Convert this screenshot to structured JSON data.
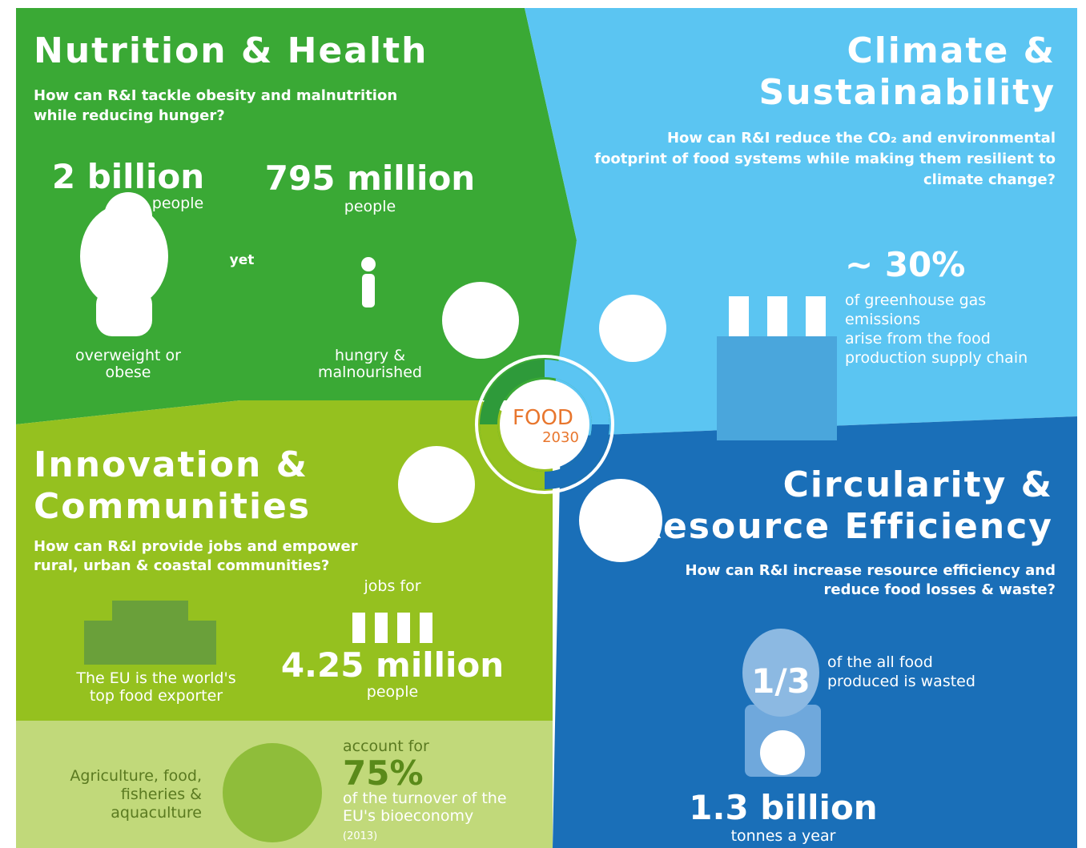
{
  "nutrition": {
    "title": "Nutrition & Health",
    "question": [
      "How can R&I tackle obesity and malnutrition",
      "while reducing hunger?"
    ],
    "stat1": {
      "value": "2 billion",
      "unit": "people",
      "label": [
        "overweight or",
        "obese"
      ]
    },
    "connector": "yet",
    "stat2": {
      "value": "795 million",
      "unit": "people",
      "label": [
        "hungry &",
        "malnourished"
      ]
    }
  },
  "climate": {
    "title": [
      "Climate &",
      "Sustainability"
    ],
    "question": [
      "How can R&I reduce the CO₂ and environmental",
      "footprint of food systems while making them resilient to",
      "climate change?"
    ],
    "stat": {
      "value": "~ 30%",
      "label": [
        "of greenhouse gas",
        "emissions",
        "arise from the food",
        "production supply chain"
      ]
    }
  },
  "center": {
    "line1": "FOOD",
    "line2": "2030"
  },
  "innovation": {
    "title": [
      "Innovation &",
      "Communities"
    ],
    "question": [
      "How can R&I provide jobs and empower",
      "rural, urban & coastal communities?"
    ],
    "exporter": [
      "The EU is the world's",
      "top food exporter"
    ],
    "jobs": {
      "intro": "jobs for",
      "value": "4.25 million",
      "unit": "people"
    },
    "bioeconomy": {
      "sectors": [
        "Agriculture, food,",
        "fisheries &",
        "aquaculture"
      ],
      "intro": "account for",
      "value": "75%",
      "label": [
        "of the turnover of the",
        "EU's bioeconomy"
      ],
      "year": "(2013)"
    }
  },
  "circularity": {
    "title": [
      "Circularity &",
      "Resource Efficiency"
    ],
    "question": [
      "How can R&I increase resource efficiency and",
      "reduce food losses & waste?"
    ],
    "fraction": "1/3",
    "fraction_label": [
      "of the all food",
      "produced is wasted"
    ],
    "stat": {
      "value": "1.3 billion",
      "unit": "tonnes a year"
    }
  }
}
